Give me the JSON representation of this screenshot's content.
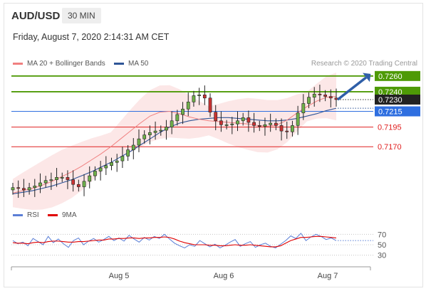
{
  "header": {
    "symbol": "AUD/USD",
    "interval": "30 MIN",
    "datetime": "Friday, August 7, 2020 2:14:31 AM CET"
  },
  "legend": {
    "ma20": {
      "label": "MA 20 + Bollinger Bands",
      "color": "#f08080"
    },
    "ma50": {
      "label": "MA 50",
      "color": "#2f5597"
    },
    "credit": "Research © 2020 Trading Central",
    "rsi": {
      "label": "RSI",
      "color": "#5b7fd6"
    },
    "rsi9": {
      "label": "9MA",
      "color": "#e00000"
    }
  },
  "chart_data": [
    {
      "type": "candlestick",
      "title": "AUD/USD",
      "ylim": [
        0.7105,
        0.7268
      ],
      "price_levels": [
        {
          "value": 0.726,
          "label": "0.7260",
          "color": "#4e9a06",
          "role": "resistance"
        },
        {
          "value": 0.724,
          "label": "0.7240",
          "color": "#4e9a06",
          "role": "resistance"
        },
        {
          "value": 0.723,
          "label": "0.7230",
          "color": "#333333",
          "role": "last-price"
        },
        {
          "value": 0.7215,
          "label": "0.7215",
          "color": "#2f6fe0",
          "role": "pivot"
        },
        {
          "value": 0.7195,
          "label": "0.7195",
          "color": "#e02020",
          "role": "support"
        },
        {
          "value": 0.717,
          "label": "0.7170",
          "color": "#e02020",
          "role": "support"
        }
      ],
      "x_ticks": [
        "Aug 5",
        "Aug 6",
        "Aug 7"
      ],
      "close_path": [
        0.7118,
        0.7117,
        0.7115,
        0.7118,
        0.712,
        0.7124,
        0.7127,
        0.7128,
        0.7131,
        0.7131,
        0.7128,
        0.7122,
        0.7119,
        0.7126,
        0.7133,
        0.7139,
        0.7143,
        0.7146,
        0.715,
        0.7152,
        0.7158,
        0.7166,
        0.7172,
        0.718,
        0.7185,
        0.7188,
        0.719,
        0.7191,
        0.7195,
        0.7203,
        0.7211,
        0.7218,
        0.7227,
        0.7235,
        0.7236,
        0.7232,
        0.7214,
        0.7203,
        0.7198,
        0.7198,
        0.7199,
        0.7203,
        0.7207,
        0.7201,
        0.7197,
        0.7196,
        0.7198,
        0.72,
        0.7197,
        0.719,
        0.7189,
        0.7197,
        0.7213,
        0.7225,
        0.7233,
        0.7237,
        0.7236,
        0.7234,
        0.7232,
        0.723
      ],
      "ma20_path": [
        0.7111,
        0.7114,
        0.7117,
        0.7121,
        0.7126,
        0.7132,
        0.7138,
        0.7145,
        0.7153,
        0.7161,
        0.717,
        0.718,
        0.719,
        0.72,
        0.7209,
        0.7214,
        0.7215,
        0.7212,
        0.7208,
        0.7205,
        0.7203,
        0.7202,
        0.7201,
        0.72,
        0.7199,
        0.7197,
        0.7196,
        0.7198,
        0.7204,
        0.7213,
        0.7221,
        0.7228,
        0.7233,
        0.7234
      ],
      "ma50_path": [
        0.711,
        0.7112,
        0.7114,
        0.7117,
        0.712,
        0.7124,
        0.7128,
        0.7133,
        0.7138,
        0.7144,
        0.715,
        0.7157,
        0.7164,
        0.7172,
        0.718,
        0.7188,
        0.7195,
        0.72,
        0.7203,
        0.7205,
        0.7206,
        0.7207,
        0.7207,
        0.7206,
        0.7205,
        0.7204,
        0.7203,
        0.7203,
        0.7204,
        0.7206,
        0.7209,
        0.7212,
        0.7216,
        0.7219
      ],
      "forecast_target": 0.726
    },
    {
      "type": "line",
      "title": "RSI",
      "ylim": [
        20,
        80
      ],
      "y_ticks": [
        "70",
        "50",
        "30"
      ],
      "series": [
        {
          "name": "RSI",
          "values": [
            58,
            52,
            55,
            48,
            62,
            56,
            50,
            66,
            54,
            61,
            52,
            45,
            58,
            63,
            50,
            57,
            62,
            55,
            60,
            66,
            58,
            63,
            57,
            68,
            61,
            55,
            64,
            59,
            66,
            62,
            70,
            61,
            53,
            48,
            44,
            50,
            47,
            58,
            52,
            46,
            51,
            44,
            49,
            55,
            60,
            47,
            52,
            56,
            45,
            50,
            53,
            47,
            44,
            51,
            58,
            67,
            62,
            72,
            58,
            65,
            70,
            66,
            60,
            63,
            58
          ]
        },
        {
          "name": "9MA",
          "values": [
            54,
            53,
            53,
            52,
            54,
            55,
            54,
            56,
            57,
            57,
            56,
            55,
            55,
            56,
            56,
            57,
            58,
            59,
            59,
            61,
            61,
            62,
            62,
            63,
            63,
            62,
            63,
            63,
            64,
            64,
            65,
            64,
            61,
            57,
            54,
            52,
            50,
            50,
            50,
            49,
            49,
            48,
            48,
            49,
            50,
            49,
            49,
            50,
            49,
            48,
            47,
            46,
            46,
            48,
            53,
            58,
            61,
            64,
            64,
            65,
            66,
            66,
            65,
            64,
            63
          ]
        }
      ],
      "last_value_estimate": 58
    }
  ]
}
